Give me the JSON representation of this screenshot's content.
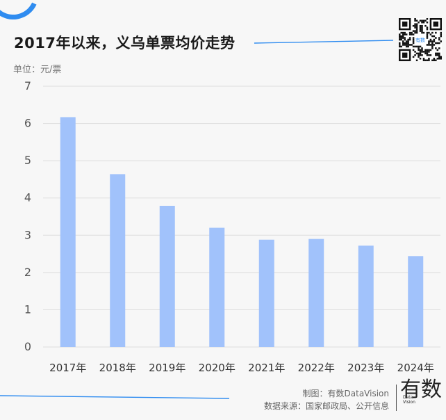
{
  "header": {
    "title": "2017年以来，义乌单票均价走势",
    "unit": "单位：元/票"
  },
  "footer": {
    "credit": "制图：有数DataVision",
    "source": "数据来源：国家邮政局、公开信息"
  },
  "brand": {
    "logo_char": "有数",
    "logo_sub1": "Data",
    "logo_sub2": "Vision",
    "qr_center": "有数"
  },
  "colors": {
    "bar": "#a1c2fb",
    "accent": "#2f8cf0",
    "grid": "#dddddd"
  },
  "chart_data": {
    "type": "bar",
    "title": "2017年以来，义乌单票均价走势",
    "ylabel": "单位：元/票",
    "categories": [
      "2017年",
      "2018年",
      "2019年",
      "2020年",
      "2021年",
      "2022年",
      "2023年",
      "2024年"
    ],
    "values": [
      6.17,
      4.64,
      3.79,
      3.2,
      2.88,
      2.9,
      2.72,
      2.44
    ],
    "ylim": [
      0,
      7
    ],
    "yticks": [
      0,
      1,
      2,
      3,
      4,
      5,
      6,
      7
    ],
    "grid": true,
    "legend": "none"
  }
}
